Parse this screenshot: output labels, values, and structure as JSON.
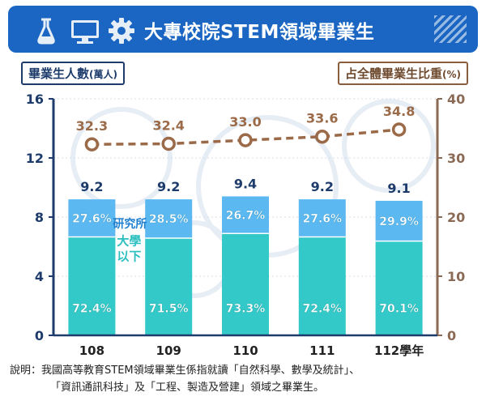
{
  "header": {
    "title": "大專校院STEM領域畢業生",
    "icons": [
      "flask-icon",
      "monitor-icon",
      "gear-icon"
    ]
  },
  "left_axis_label": {
    "text": "畢業生人數",
    "unit": "(萬人)"
  },
  "right_axis_label": {
    "text": "占全體畢業生比重",
    "unit": "(%)"
  },
  "chart_data": {
    "type": "bar",
    "stacked": true,
    "categories": [
      "108",
      "109",
      "110",
      "111",
      "112學年"
    ],
    "left_axis": {
      "ylim": [
        0,
        16
      ],
      "ticks": [
        0,
        4,
        8,
        12,
        16
      ]
    },
    "right_axis": {
      "ylim": [
        0,
        40
      ],
      "ticks": [
        0,
        10,
        20,
        30,
        40
      ]
    },
    "series": [
      {
        "name": "大學以下",
        "label_lines": [
          "大學",
          "以下"
        ],
        "share_pct": [
          72.4,
          71.5,
          73.3,
          72.4,
          70.1
        ],
        "color": "#33c9c9"
      },
      {
        "name": "研究所",
        "label_lines": [
          "研究所"
        ],
        "share_pct": [
          27.6,
          28.5,
          26.7,
          27.6,
          29.9
        ],
        "color": "#5bb8f0"
      }
    ],
    "totals": [
      9.2,
      9.2,
      9.4,
      9.2,
      9.1
    ],
    "line": {
      "values": [
        32.3,
        32.4,
        33.0,
        33.6,
        34.8
      ],
      "labels": [
        "32.3",
        "32.4",
        "33.0",
        "33.6",
        "34.8"
      ],
      "color": "#9b6a48"
    },
    "colors": {
      "left_axis": "#1d3b6b",
      "right_axis": "#8a6a55",
      "total_label": "#1d3b6b"
    }
  },
  "note": {
    "line1": "說明：我國高等教育STEM領域畢業生係指就讀「自然科學、數學及統計」、",
    "line2": "「資訊通訊科技」及「工程、製造及營建」領域之畢業生。"
  }
}
